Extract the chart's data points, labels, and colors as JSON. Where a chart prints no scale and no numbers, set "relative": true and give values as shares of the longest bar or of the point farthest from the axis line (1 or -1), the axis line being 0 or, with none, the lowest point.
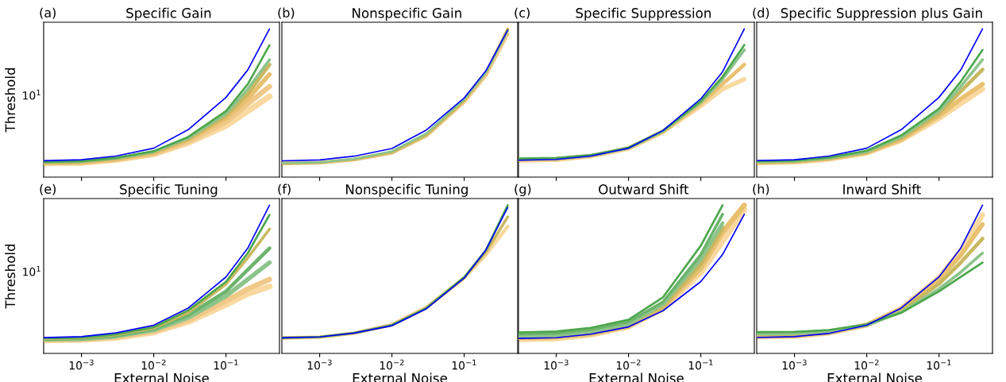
{
  "chart_data": [
    {
      "type": "line",
      "relative": true,
      "title": "Specific Gain",
      "annotations": [
        "(a)",
        "10$^{1}$"
      ],
      "ylabel": "Threshold",
      "log": "x",
      "tick_labels": false,
      "grid": false,
      "x": [
        0.0003,
        0.001,
        0.003,
        0.01,
        0.03,
        0.1,
        0.2,
        0.4
      ],
      "xlim": [
        0.0003,
        0.55
      ],
      "xticks": [
        {
          "value": 0.001,
          "label": null
        },
        {
          "value": 0.01,
          "label": null
        },
        {
          "value": 0.1,
          "label": null
        }
      ],
      "series": [
        {
          "color": "#f9d9a0",
          "values": [
            0.094,
            0.097,
            0.116,
            0.155,
            0.231,
            0.347,
            0.446,
            0.545
          ]
        },
        {
          "color": "#f0c888",
          "values": [
            0.096,
            0.099,
            0.119,
            0.158,
            0.241,
            0.373,
            0.495,
            0.611
          ]
        },
        {
          "color": "#e8c070",
          "values": [
            0.097,
            0.102,
            0.122,
            0.165,
            0.251,
            0.396,
            0.528,
            0.693
          ]
        },
        {
          "color": "#c8b860",
          "values": [
            0.099,
            0.104,
            0.125,
            0.168,
            0.257,
            0.413,
            0.561,
            0.759
          ]
        },
        {
          "color": "#8cc48c",
          "values": [
            0.101,
            0.106,
            0.127,
            0.172,
            0.264,
            0.429,
            0.594,
            0.792
          ]
        },
        {
          "color": "#4ca64c",
          "values": [
            0.102,
            0.107,
            0.129,
            0.175,
            0.271,
            0.446,
            0.627,
            0.891
          ]
        },
        {
          "color": "#0000ff",
          "values": [
            0.111,
            0.117,
            0.142,
            0.195,
            0.32,
            0.538,
            0.723,
            1
          ]
        }
      ]
    },
    {
      "type": "line",
      "relative": true,
      "title": "Nonspecific Gain",
      "annotations": [
        "(b)"
      ],
      "log": "x",
      "tick_labels": false,
      "grid": false,
      "x": [
        0.0003,
        0.001,
        0.003,
        0.01,
        0.03,
        0.1,
        0.2,
        0.4
      ],
      "xlim": [
        0.0003,
        0.55
      ],
      "xticks": [
        {
          "value": 0.001,
          "label": null
        },
        {
          "value": 0.01,
          "label": null
        },
        {
          "value": 0.1,
          "label": null
        }
      ],
      "series": [
        {
          "color": "#f0c888",
          "values": [
            0.092,
            0.097,
            0.118,
            0.164,
            0.279,
            0.508,
            0.689,
            0.967
          ]
        },
        {
          "color": "#c8b860",
          "values": [
            0.093,
            0.098,
            0.12,
            0.167,
            0.285,
            0.518,
            0.705,
            1
          ]
        },
        {
          "color": "#8cc48c",
          "values": [
            0.095,
            0.1,
            0.123,
            0.174,
            0.295,
            0.525,
            0.705,
            0.984
          ]
        },
        {
          "color": "#0000ff",
          "values": [
            0.11,
            0.116,
            0.141,
            0.193,
            0.318,
            0.534,
            0.718,
            0.993
          ]
        }
      ]
    },
    {
      "type": "line",
      "relative": true,
      "title": "Specific Suppression",
      "annotations": [
        "(c)"
      ],
      "log": "x",
      "tick_labels": false,
      "grid": false,
      "x": [
        0.0003,
        0.001,
        0.003,
        0.01,
        0.03,
        0.1,
        0.2,
        0.4
      ],
      "xlim": [
        0.0003,
        0.55
      ],
      "xticks": [
        {
          "value": 0.001,
          "label": null
        },
        {
          "value": 0.01,
          "label": null
        },
        {
          "value": 0.1,
          "label": null
        }
      ],
      "series": [
        {
          "color": "#f9d9a0",
          "values": [
            0.112,
            0.116,
            0.14,
            0.193,
            0.304,
            0.479,
            0.594,
            0.66
          ]
        },
        {
          "color": "#e8c070",
          "values": [
            0.116,
            0.119,
            0.142,
            0.195,
            0.307,
            0.495,
            0.627,
            0.759
          ]
        },
        {
          "color": "#8cc48c",
          "values": [
            0.12,
            0.124,
            0.145,
            0.196,
            0.31,
            0.505,
            0.66,
            0.858
          ]
        },
        {
          "color": "#4ca64c",
          "values": [
            0.125,
            0.129,
            0.149,
            0.198,
            0.314,
            0.512,
            0.677,
            0.891
          ]
        },
        {
          "color": "#0000ff",
          "values": [
            0.114,
            0.119,
            0.142,
            0.195,
            0.314,
            0.528,
            0.71,
            1
          ]
        }
      ]
    },
    {
      "type": "line",
      "relative": true,
      "title": "Specific Suppression plus Gain",
      "annotations": [
        "(d)"
      ],
      "log": "x",
      "tick_labels": false,
      "grid": false,
      "x": [
        0.0003,
        0.001,
        0.003,
        0.01,
        0.03,
        0.1,
        0.2,
        0.4
      ],
      "xlim": [
        0.0003,
        0.55
      ],
      "xticks": [
        {
          "value": 0.001,
          "label": null
        },
        {
          "value": 0.01,
          "label": null
        },
        {
          "value": 0.1,
          "label": null
        }
      ],
      "series": [
        {
          "color": "#f9d9a0",
          "values": [
            0.097,
            0.102,
            0.122,
            0.162,
            0.248,
            0.396,
            0.495,
            0.594
          ]
        },
        {
          "color": "#e8c070",
          "values": [
            0.099,
            0.104,
            0.124,
            0.165,
            0.254,
            0.413,
            0.528,
            0.627
          ]
        },
        {
          "color": "#c8b860",
          "values": [
            0.102,
            0.107,
            0.127,
            0.168,
            0.264,
            0.429,
            0.578,
            0.726
          ]
        },
        {
          "color": "#8cc48c",
          "values": [
            0.104,
            0.109,
            0.129,
            0.172,
            0.271,
            0.446,
            0.611,
            0.792
          ]
        },
        {
          "color": "#4ca64c",
          "values": [
            0.107,
            0.112,
            0.132,
            0.178,
            0.281,
            0.462,
            0.644,
            0.858
          ]
        },
        {
          "color": "#0000ff",
          "values": [
            0.111,
            0.117,
            0.142,
            0.195,
            0.32,
            0.538,
            0.723,
            1
          ]
        }
      ]
    },
    {
      "type": "line",
      "relative": true,
      "title": "Specific Tuning",
      "annotations": [
        "(e)",
        "10$^{1}$"
      ],
      "xlabel": "External Noise",
      "ylabel": "Threshold",
      "log": "x",
      "tick_labels": "x",
      "grid": false,
      "x": [
        0.0003,
        0.001,
        0.003,
        0.01,
        0.03,
        0.1,
        0.2,
        0.4
      ],
      "xlim": [
        0.0003,
        0.55
      ],
      "xticks": [
        {
          "value": 0.001,
          "label": "10$^{−3}$"
        },
        {
          "value": 0.01,
          "label": "10$^{−2}$"
        },
        {
          "value": 0.1,
          "label": "10$^{−1}$"
        }
      ],
      "series": [
        {
          "color": "#f9d9a0",
          "values": [
            0.089,
            0.092,
            0.106,
            0.142,
            0.213,
            0.329,
            0.403,
            0.452
          ]
        },
        {
          "color": "#f0c888",
          "values": [
            0.092,
            0.095,
            0.111,
            0.15,
            0.226,
            0.355,
            0.435,
            0.5
          ]
        },
        {
          "color": "#8cc48c",
          "values": [
            0.095,
            0.098,
            0.116,
            0.158,
            0.242,
            0.387,
            0.5,
            0.613
          ]
        },
        {
          "color": "#6cb46c",
          "values": [
            0.097,
            0.102,
            0.121,
            0.165,
            0.258,
            0.419,
            0.565,
            0.71
          ]
        },
        {
          "color": "#c8b860",
          "values": [
            0.1,
            0.105,
            0.126,
            0.171,
            0.274,
            0.468,
            0.645,
            0.839
          ]
        },
        {
          "color": "#4ca64c",
          "values": [
            0.102,
            0.106,
            0.129,
            0.177,
            0.29,
            0.484,
            0.677,
            0.935
          ]
        },
        {
          "color": "#0000ff",
          "values": [
            0.107,
            0.113,
            0.139,
            0.19,
            0.306,
            0.516,
            0.71,
            1
          ]
        }
      ]
    },
    {
      "type": "line",
      "relative": true,
      "title": "Nonspecific Tuning",
      "annotations": [
        "(f)"
      ],
      "xlabel": "External Noise",
      "log": "x",
      "tick_labels": "x",
      "grid": false,
      "x": [
        0.0003,
        0.001,
        0.003,
        0.01,
        0.03,
        0.1,
        0.2,
        0.4
      ],
      "xlim": [
        0.0003,
        0.55
      ],
      "xticks": [
        {
          "value": 0.001,
          "label": "10$^{−3}$"
        },
        {
          "value": 0.01,
          "label": "10$^{−2}$"
        },
        {
          "value": 0.1,
          "label": "10$^{−1}$"
        }
      ],
      "series": [
        {
          "color": "#f9d9a0",
          "values": [
            0.104,
            0.11,
            0.137,
            0.194,
            0.311,
            0.508,
            0.667,
            0.857
          ]
        },
        {
          "color": "#c8b860",
          "values": [
            0.105,
            0.11,
            0.137,
            0.192,
            0.308,
            0.511,
            0.683,
            0.921
          ]
        },
        {
          "color": "#4ca64c",
          "values": [
            0.105,
            0.111,
            0.138,
            0.19,
            0.305,
            0.514,
            0.698,
            1
          ]
        },
        {
          "color": "#0000ff",
          "values": [
            0.105,
            0.111,
            0.137,
            0.187,
            0.302,
            0.508,
            0.698,
            0.984
          ]
        }
      ]
    },
    {
      "type": "line",
      "relative": true,
      "title": "Outward Shift",
      "annotations": [
        "(g)"
      ],
      "xlabel": "External Noise",
      "log": "x",
      "tick_labels": "x",
      "grid": false,
      "x": [
        0.0003,
        0.001,
        0.003,
        0.01,
        0.03,
        0.1,
        0.2,
        0.4
      ],
      "xlim": [
        0.0003,
        0.55
      ],
      "xticks": [
        {
          "value": 0.001,
          "label": "10$^{−3}$"
        },
        {
          "value": 0.01,
          "label": "10$^{−2}$"
        },
        {
          "value": 0.1,
          "label": "10$^{−1}$"
        }
      ],
      "series": [
        {
          "color": "#f9d9a0",
          "values": [
            0.097,
            0.102,
            0.127,
            0.182,
            0.303,
            0.545,
            0.758,
            0.97
          ]
        },
        {
          "color": "#e8c070",
          "values": [
            0.106,
            0.111,
            0.133,
            0.185,
            0.309,
            0.576,
            0.818,
            1
          ]
        },
        {
          "color": "#c8b860",
          "values": [
            0.112,
            0.117,
            0.139,
            0.191,
            0.318,
            0.606,
            0.848,
            null
          ]
        },
        {
          "color": "#8cc48c",
          "values": [
            0.12,
            0.124,
            0.148,
            0.2,
            0.333,
            0.636,
            0.879,
            null
          ]
        },
        {
          "color": "#6cb46c",
          "values": [
            0.13,
            0.136,
            0.161,
            0.212,
            0.348,
            0.667,
            0.939,
            null
          ]
        },
        {
          "color": "#4ca64c",
          "values": [
            0.142,
            0.148,
            0.173,
            0.227,
            0.379,
            0.727,
            1,
            null
          ]
        },
        {
          "color": "#0000ff",
          "values": [
            0.101,
            0.106,
            0.13,
            0.179,
            0.288,
            0.485,
            0.667,
            0.939
          ]
        }
      ]
    },
    {
      "type": "line",
      "relative": true,
      "title": "Inward Shift",
      "annotations": [
        "(h)"
      ],
      "xlabel": "External Noise",
      "log": "x",
      "tick_labels": "x",
      "grid": false,
      "x": [
        0.0003,
        0.001,
        0.003,
        0.01,
        0.03,
        0.1,
        0.2,
        0.4
      ],
      "xlim": [
        0.0003,
        0.55
      ],
      "xticks": [
        {
          "value": 0.001,
          "label": "10$^{−3}$"
        },
        {
          "value": 0.01,
          "label": "10$^{−2}$"
        },
        {
          "value": 0.1,
          "label": "10$^{−1}$"
        }
      ],
      "series": [
        {
          "color": "#f9d9a0",
          "values": [
            0.111,
            0.115,
            0.137,
            0.192,
            0.303,
            0.51,
            0.694,
            0.935
          ]
        },
        {
          "color": "#e8c070",
          "values": [
            0.115,
            0.118,
            0.139,
            0.192,
            0.3,
            0.5,
            0.661,
            0.871
          ]
        },
        {
          "color": "#c8b860",
          "values": [
            0.121,
            0.124,
            0.142,
            0.19,
            0.29,
            0.468,
            0.613,
            0.774
          ]
        },
        {
          "color": "#8cc48c",
          "values": [
            0.132,
            0.134,
            0.148,
            0.19,
            0.277,
            0.435,
            0.548,
            0.677
          ]
        },
        {
          "color": "#4ca64c",
          "values": [
            0.144,
            0.145,
            0.158,
            0.197,
            0.274,
            0.419,
            0.516,
            0.613
          ]
        },
        {
          "color": "#0000ff",
          "values": [
            0.107,
            0.113,
            0.135,
            0.19,
            0.306,
            0.516,
            0.71,
            1
          ]
        }
      ]
    }
  ]
}
